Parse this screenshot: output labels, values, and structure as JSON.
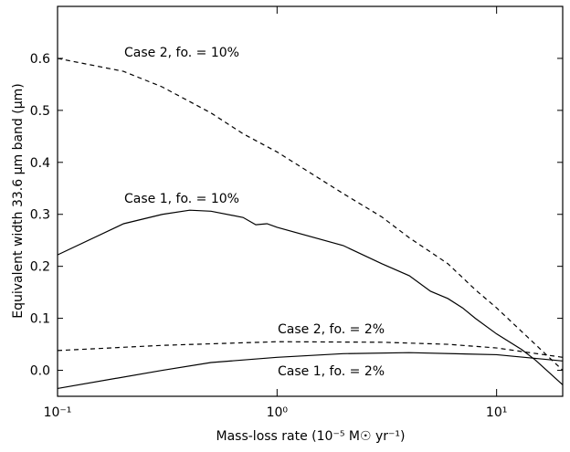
{
  "chart_data": {
    "type": "line",
    "xlabel": "Mass-loss rate (10⁻⁵ M☉ yr⁻¹)",
    "ylabel": "Equivalent width 33.6 μm band (μm)",
    "xscale": "log",
    "xlim": [
      0.1,
      20
    ],
    "ylim": [
      -0.05,
      0.7
    ],
    "xticks": [
      {
        "value": 0.1,
        "label": "10⁻¹"
      },
      {
        "value": 1,
        "label": "10⁰"
      },
      {
        "value": 10,
        "label": "10¹"
      }
    ],
    "yticks": [
      {
        "value": 0,
        "label": "0.0"
      },
      0.1,
      0.2,
      0.3,
      0.4,
      0.5,
      0.6
    ],
    "grid": false,
    "series": [
      {
        "name": "Case 2, fo. = 10%",
        "color": "#000000",
        "dash": true,
        "x": [
          0.1,
          0.2,
          0.3,
          0.5,
          0.7,
          1,
          2,
          3,
          4,
          6,
          8,
          10,
          15,
          20
        ],
        "values": [
          0.6,
          0.575,
          0.545,
          0.495,
          0.455,
          0.42,
          0.34,
          0.295,
          0.255,
          0.205,
          0.155,
          0.12,
          0.05,
          0.0
        ]
      },
      {
        "name": "Case 1, fo. = 10%",
        "color": "#000000",
        "dash": false,
        "x": [
          0.1,
          0.2,
          0.3,
          0.4,
          0.5,
          0.7,
          0.8,
          0.9,
          1,
          2,
          3,
          4,
          5,
          6,
          7,
          8,
          10,
          13,
          15,
          20
        ],
        "values": [
          0.222,
          0.282,
          0.3,
          0.308,
          0.306,
          0.294,
          0.28,
          0.282,
          0.275,
          0.24,
          0.205,
          0.182,
          0.152,
          0.138,
          0.12,
          0.1,
          0.07,
          0.04,
          0.02,
          -0.028
        ]
      },
      {
        "name": "Case 2, fo. = 2%",
        "color": "#000000",
        "dash": true,
        "x": [
          0.1,
          0.3,
          1,
          3,
          6,
          10,
          20
        ],
        "values": [
          0.038,
          0.048,
          0.055,
          0.054,
          0.05,
          0.043,
          0.025
        ]
      },
      {
        "name": "Case 1, fo. = 2%",
        "color": "#000000",
        "dash": false,
        "x": [
          0.1,
          0.3,
          0.5,
          1,
          2,
          4,
          10,
          20
        ],
        "values": [
          -0.035,
          0.0,
          0.015,
          0.025,
          0.032,
          0.034,
          0.03,
          0.018
        ]
      }
    ]
  }
}
